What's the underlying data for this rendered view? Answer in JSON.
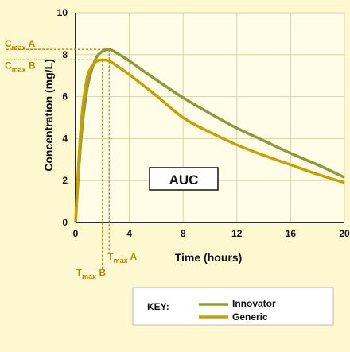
{
  "chart_data": {
    "type": "line",
    "xlabel": "Time (hours)",
    "ylabel": "Concentration (mg/L)",
    "xlim": [
      0,
      20
    ],
    "ylim": [
      0,
      10
    ],
    "xticks": [
      "0",
      "4",
      "8",
      "12",
      "16",
      "20"
    ],
    "yticks": [
      "0",
      "2",
      "4",
      "6",
      "8",
      "10"
    ],
    "grid": true,
    "legend": {
      "title": "KEY:",
      "placement": "bottom-right"
    },
    "series": [
      {
        "name": "Innovator",
        "color": "#8d9a35",
        "x": [
          0,
          0.25,
          0.5,
          0.75,
          1,
          1.5,
          2,
          2.5,
          3,
          4,
          6,
          8,
          10,
          12,
          14,
          16,
          18,
          20
        ],
        "y": [
          0,
          2.6,
          4.6,
          5.9,
          6.8,
          7.8,
          8.15,
          8.25,
          8.1,
          7.7,
          6.8,
          5.95,
          5.2,
          4.5,
          3.9,
          3.3,
          2.75,
          2.15
        ]
      },
      {
        "name": "Generic",
        "color": "#c9a000",
        "x": [
          0,
          0.25,
          0.5,
          0.75,
          1,
          1.5,
          2,
          2.5,
          3,
          4,
          6,
          8,
          10,
          12,
          14,
          16,
          18,
          20
        ],
        "y": [
          0,
          3.1,
          5.3,
          6.5,
          7.2,
          7.65,
          7.75,
          7.7,
          7.5,
          7.05,
          6.05,
          5.0,
          4.3,
          3.7,
          3.2,
          2.75,
          2.3,
          1.9
        ]
      }
    ],
    "annotations": {
      "cmax_a": {
        "label": "C",
        "sub": "max",
        "suffix": " A",
        "value": 8.25
      },
      "cmax_b": {
        "label": "C",
        "sub": "max",
        "suffix": " B",
        "value": 7.75
      },
      "tmax_a": {
        "label": "T",
        "sub": "max",
        "suffix": " A",
        "value": 2.5
      },
      "tmax_b": {
        "label": "T",
        "sub": "max",
        "suffix": " B",
        "value": 2.0
      },
      "auc": "AUC",
      "color": "#b5860e"
    }
  }
}
